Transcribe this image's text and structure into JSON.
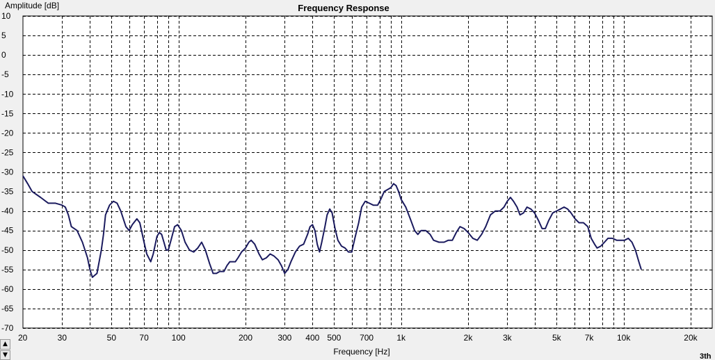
{
  "chart_data": {
    "type": "line",
    "title": "Frequency Response",
    "xlabel": "Frequency [Hz]",
    "ylabel": "Amplitude [dB]",
    "xscale": "log",
    "xlim": [
      20,
      25000
    ],
    "ylim": [
      -70,
      10
    ],
    "y_ticks": [
      10,
      5,
      0,
      -5,
      -10,
      -15,
      -20,
      -25,
      -30,
      -35,
      -40,
      -45,
      -50,
      -55,
      -60,
      -65,
      -70
    ],
    "x_tick_labels": [
      {
        "f": 20,
        "label": "20"
      },
      {
        "f": 30,
        "label": "30"
      },
      {
        "f": 50,
        "label": "50"
      },
      {
        "f": 70,
        "label": "70"
      },
      {
        "f": 100,
        "label": "100"
      },
      {
        "f": 200,
        "label": "200"
      },
      {
        "f": 300,
        "label": "300"
      },
      {
        "f": 400,
        "label": "400"
      },
      {
        "f": 500,
        "label": "500"
      },
      {
        "f": 700,
        "label": "700"
      },
      {
        "f": 1000,
        "label": "1k"
      },
      {
        "f": 2000,
        "label": "2k"
      },
      {
        "f": 3000,
        "label": "3k"
      },
      {
        "f": 5000,
        "label": "5k"
      },
      {
        "f": 7000,
        "label": "7k"
      },
      {
        "f": 10000,
        "label": "10k"
      },
      {
        "f": 20000,
        "label": "20k"
      }
    ],
    "grid": true,
    "series": [
      {
        "color": "#1a1a5e",
        "points": [
          [
            20,
            -31
          ],
          [
            21,
            -33
          ],
          [
            22,
            -35
          ],
          [
            24,
            -36.5
          ],
          [
            26,
            -38
          ],
          [
            28,
            -38
          ],
          [
            30,
            -38.5
          ],
          [
            31,
            -39
          ],
          [
            32,
            -41
          ],
          [
            33,
            -44
          ],
          [
            35,
            -45
          ],
          [
            37,
            -48
          ],
          [
            39,
            -52
          ],
          [
            40,
            -55
          ],
          [
            41,
            -57
          ],
          [
            43,
            -56
          ],
          [
            45,
            -50
          ],
          [
            46,
            -46
          ],
          [
            47,
            -41
          ],
          [
            49,
            -38.5
          ],
          [
            51,
            -37.5
          ],
          [
            53,
            -38
          ],
          [
            55,
            -40
          ],
          [
            58,
            -44
          ],
          [
            60,
            -45
          ],
          [
            62,
            -43.5
          ],
          [
            65,
            -42
          ],
          [
            67,
            -43
          ],
          [
            70,
            -48
          ],
          [
            72,
            -51
          ],
          [
            75,
            -53
          ],
          [
            77,
            -51
          ],
          [
            80,
            -46.5
          ],
          [
            82,
            -45.5
          ],
          [
            84,
            -46
          ],
          [
            86,
            -48
          ],
          [
            88,
            -50
          ],
          [
            90,
            -50
          ],
          [
            93,
            -47
          ],
          [
            96,
            -44
          ],
          [
            99,
            -43.5
          ],
          [
            103,
            -45
          ],
          [
            107,
            -48
          ],
          [
            112,
            -50
          ],
          [
            117,
            -50.5
          ],
          [
            122,
            -49.5
          ],
          [
            127,
            -48
          ],
          [
            132,
            -50
          ],
          [
            138,
            -53.5
          ],
          [
            143,
            -56
          ],
          [
            148,
            -56
          ],
          [
            153,
            -55.5
          ],
          [
            160,
            -55.5
          ],
          [
            165,
            -54
          ],
          [
            170,
            -53
          ],
          [
            175,
            -53
          ],
          [
            180,
            -53
          ],
          [
            185,
            -52
          ],
          [
            192,
            -50.5
          ],
          [
            200,
            -49.5
          ],
          [
            207,
            -48
          ],
          [
            212,
            -47.5
          ],
          [
            220,
            -48.5
          ],
          [
            230,
            -51
          ],
          [
            238,
            -52.5
          ],
          [
            248,
            -52
          ],
          [
            258,
            -51
          ],
          [
            268,
            -51.5
          ],
          [
            280,
            -52.5
          ],
          [
            290,
            -54
          ],
          [
            300,
            -56
          ],
          [
            310,
            -55
          ],
          [
            320,
            -53
          ],
          [
            335,
            -50.5
          ],
          [
            350,
            -49
          ],
          [
            365,
            -48.5
          ],
          [
            380,
            -46
          ],
          [
            390,
            -44
          ],
          [
            400,
            -43.5
          ],
          [
            410,
            -45
          ],
          [
            420,
            -48.5
          ],
          [
            430,
            -50.5
          ],
          [
            440,
            -48
          ],
          [
            455,
            -44
          ],
          [
            465,
            -41
          ],
          [
            478,
            -39.5
          ],
          [
            490,
            -40.5
          ],
          [
            505,
            -44.5
          ],
          [
            520,
            -47.5
          ],
          [
            540,
            -49
          ],
          [
            560,
            -49.5
          ],
          [
            580,
            -50.5
          ],
          [
            600,
            -50.5
          ],
          [
            620,
            -47
          ],
          [
            645,
            -43
          ],
          [
            665,
            -39
          ],
          [
            690,
            -37.5
          ],
          [
            720,
            -38
          ],
          [
            750,
            -38.5
          ],
          [
            785,
            -38.5
          ],
          [
            810,
            -37
          ],
          [
            840,
            -35
          ],
          [
            870,
            -34.5
          ],
          [
            900,
            -34
          ],
          [
            925,
            -33
          ],
          [
            950,
            -33.5
          ],
          [
            975,
            -35
          ],
          [
            1000,
            -37
          ],
          [
            1050,
            -39
          ],
          [
            1100,
            -42
          ],
          [
            1150,
            -45
          ],
          [
            1190,
            -46
          ],
          [
            1230,
            -45
          ],
          [
            1290,
            -45
          ],
          [
            1350,
            -46
          ],
          [
            1400,
            -47.5
          ],
          [
            1480,
            -48
          ],
          [
            1560,
            -48
          ],
          [
            1630,
            -47.5
          ],
          [
            1700,
            -47.5
          ],
          [
            1770,
            -45.5
          ],
          [
            1840,
            -44
          ],
          [
            1920,
            -44.5
          ],
          [
            2000,
            -45.5
          ],
          [
            2100,
            -47
          ],
          [
            2200,
            -47.5
          ],
          [
            2300,
            -46
          ],
          [
            2400,
            -44
          ],
          [
            2520,
            -41
          ],
          [
            2650,
            -40
          ],
          [
            2780,
            -40
          ],
          [
            2900,
            -39
          ],
          [
            3000,
            -37.5
          ],
          [
            3100,
            -36.5
          ],
          [
            3200,
            -37.5
          ],
          [
            3320,
            -39
          ],
          [
            3420,
            -41
          ],
          [
            3550,
            -40.5
          ],
          [
            3680,
            -39
          ],
          [
            3830,
            -39.5
          ],
          [
            3980,
            -40.5
          ],
          [
            4150,
            -42.5
          ],
          [
            4300,
            -44.5
          ],
          [
            4450,
            -44.5
          ],
          [
            4600,
            -42.5
          ],
          [
            4800,
            -40.5
          ],
          [
            5000,
            -40
          ],
          [
            5200,
            -39.5
          ],
          [
            5400,
            -39
          ],
          [
            5600,
            -39.5
          ],
          [
            5800,
            -40.5
          ],
          [
            6050,
            -42
          ],
          [
            6300,
            -43
          ],
          [
            6600,
            -43
          ],
          [
            6900,
            -44
          ],
          [
            7150,
            -47
          ],
          [
            7400,
            -48.5
          ],
          [
            7600,
            -49.5
          ],
          [
            7900,
            -49
          ],
          [
            8200,
            -48
          ],
          [
            8500,
            -47
          ],
          [
            8900,
            -47
          ],
          [
            9300,
            -47.5
          ],
          [
            9700,
            -47.5
          ],
          [
            10100,
            -47.5
          ],
          [
            10500,
            -47
          ],
          [
            10900,
            -48
          ],
          [
            11300,
            -50
          ],
          [
            11700,
            -53
          ],
          [
            12000,
            -55
          ]
        ]
      }
    ]
  },
  "corner_text": "3th",
  "scroll": {
    "up_glyph": "▲",
    "down_glyph": "▼"
  }
}
